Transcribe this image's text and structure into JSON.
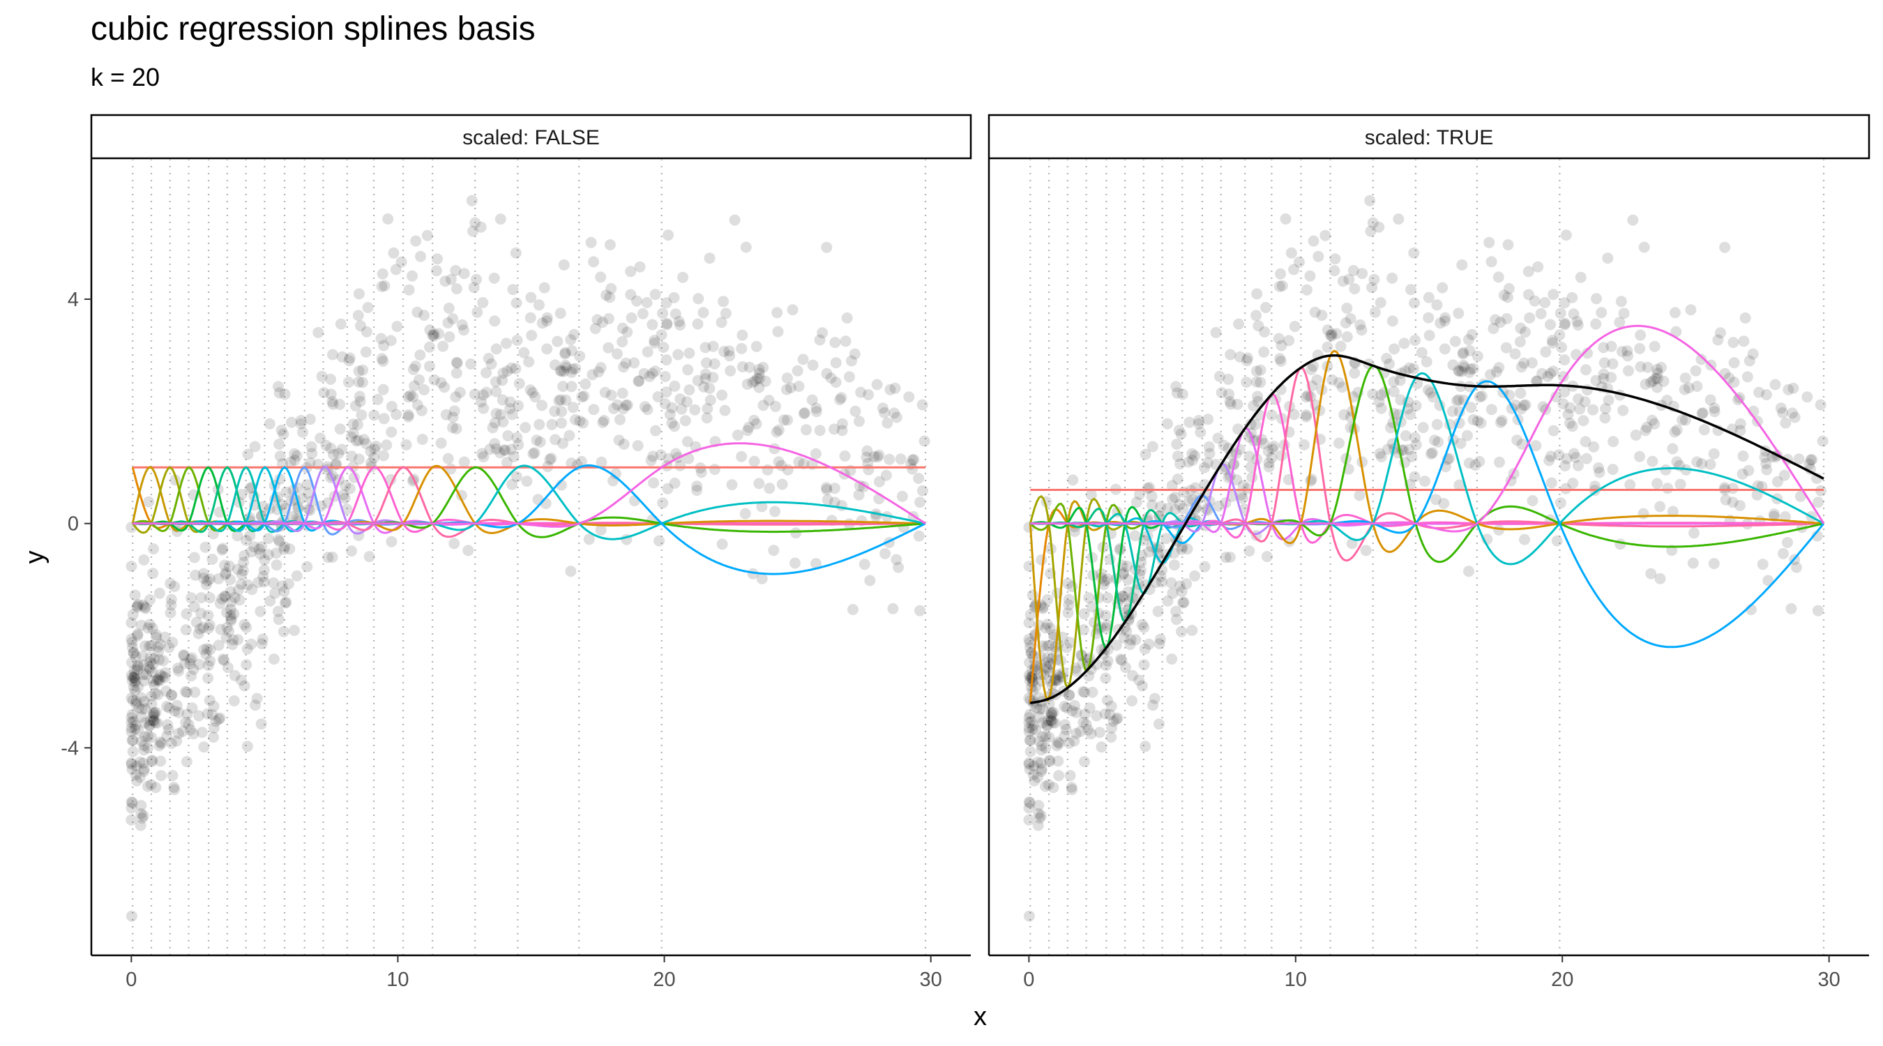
{
  "chart_data": {
    "type": "line",
    "title": "cubic regression splines basis",
    "subtitle": "k = 20",
    "xlabel": "x",
    "ylabel": "y",
    "xlim": [
      -1.5,
      31.5
    ],
    "ylim": [
      -7.7,
      6.5
    ],
    "x_ticks": [
      0,
      10,
      20,
      30
    ],
    "x_tick_labels": [
      "0",
      "10",
      "20",
      "30"
    ],
    "y_ticks": [
      -4,
      0,
      4
    ],
    "y_tick_labels": [
      "-4",
      "0",
      "4"
    ],
    "grid": false,
    "legend": "none",
    "knots": [
      0.05,
      0.75,
      1.45,
      2.15,
      2.9,
      3.6,
      4.3,
      5.0,
      5.75,
      6.5,
      7.2,
      8.1,
      9.1,
      10.2,
      11.3,
      12.9,
      14.5,
      16.8,
      19.9,
      29.8
    ],
    "point_style": {
      "color": "#000000",
      "opacity": 0.13
    },
    "smooth_color": "#000000",
    "basis_colors": [
      "#F8766D",
      "#E58700",
      "#C99800",
      "#A3A500",
      "#6BB100",
      "#00BA38",
      "#00BF7D",
      "#00C0AF",
      "#00BCD8",
      "#00B0F6",
      "#619CFF",
      "#B983FF",
      "#E76BF3",
      "#FD61D1",
      "#FF67A4",
      "#D89000",
      "#39B600",
      "#00BFC4",
      "#00A9FF",
      "#F564E3"
    ],
    "panels": [
      {
        "strip": "scaled: FALSE",
        "scaled": false
      },
      {
        "strip": "scaled: TRUE",
        "scaled": true
      }
    ]
  }
}
